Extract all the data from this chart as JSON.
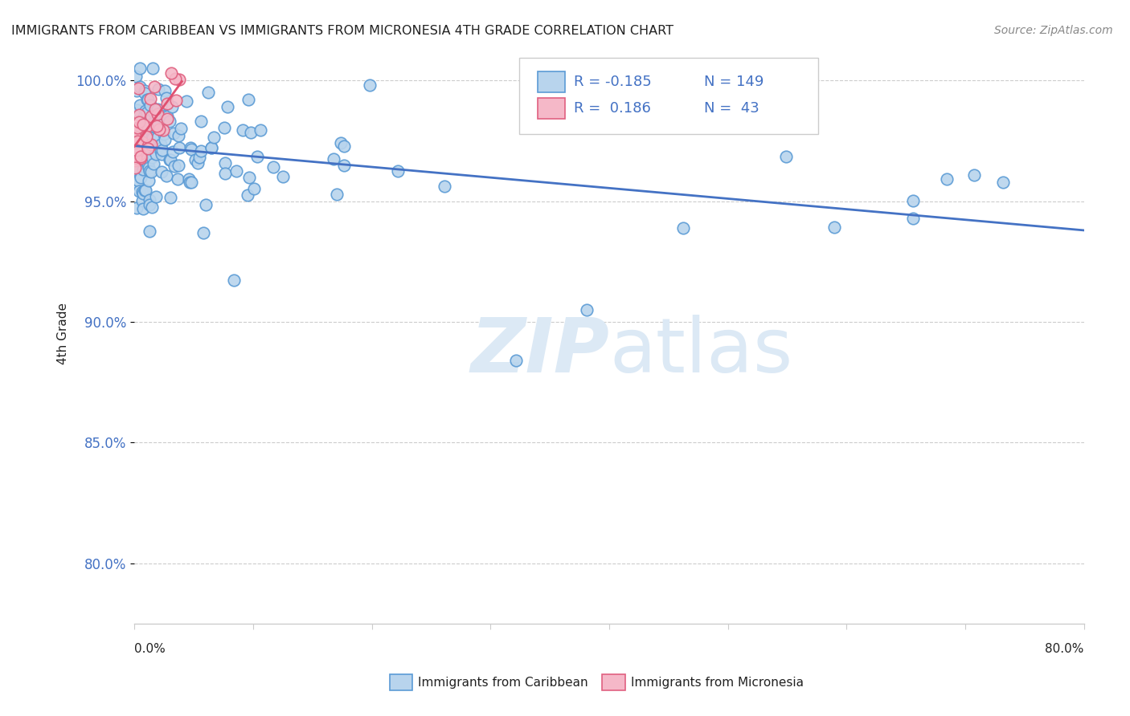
{
  "title": "IMMIGRANTS FROM CARIBBEAN VS IMMIGRANTS FROM MICRONESIA 4TH GRADE CORRELATION CHART",
  "source": "Source: ZipAtlas.com",
  "ylabel": "4th Grade",
  "ytick_values": [
    0.8,
    0.85,
    0.9,
    0.95,
    1.0
  ],
  "xrange": [
    0.0,
    0.8
  ],
  "yrange": [
    0.775,
    1.015
  ],
  "legend_r_caribbean": "-0.185",
  "legend_n_caribbean": "149",
  "legend_r_micronesia": "0.186",
  "legend_n_micronesia": "43",
  "color_caribbean_face": "#b8d4ed",
  "color_caribbean_edge": "#5b9bd5",
  "color_micronesia_face": "#f5b8c8",
  "color_micronesia_edge": "#e06080",
  "color_line_caribbean": "#4472c4",
  "color_line_micronesia": "#e05070",
  "watermark_color": "#dce9f5",
  "ytick_color": "#4472c4",
  "title_color": "#222222",
  "source_color": "#888888"
}
